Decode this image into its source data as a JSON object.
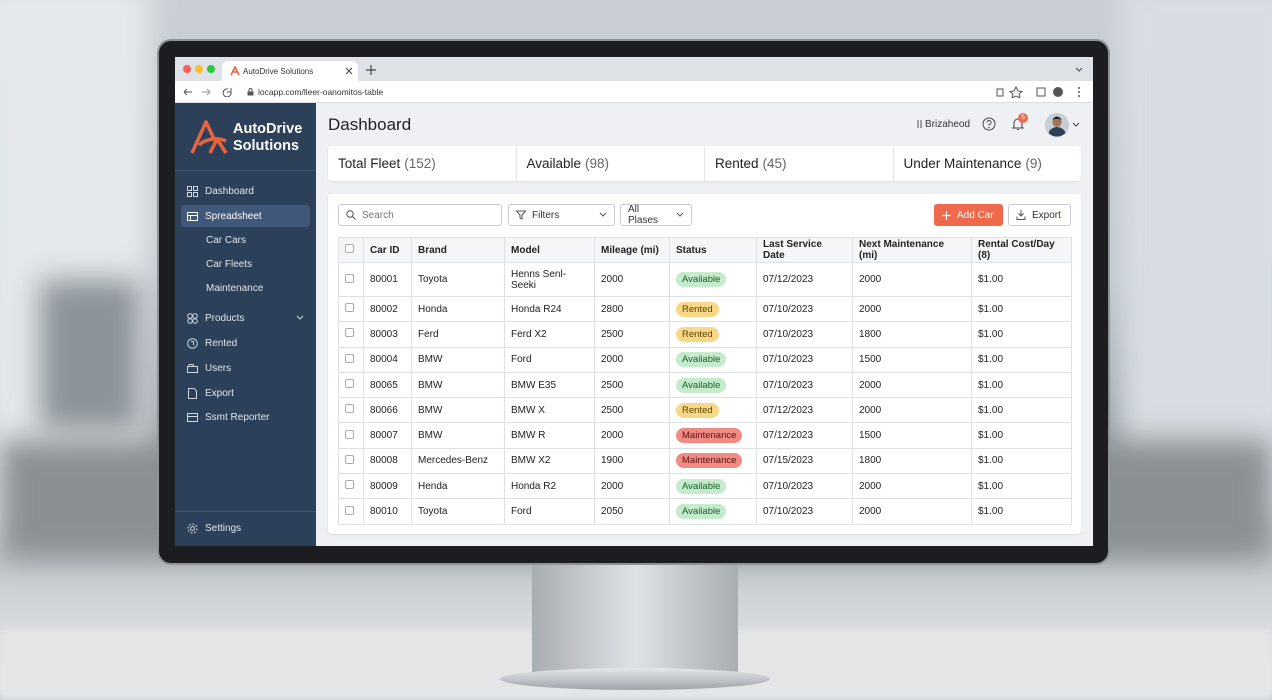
{
  "browser": {
    "tab_title": "AutoDrive Solutions",
    "url": "locapp.com/lleer-oanomitos-table"
  },
  "sidebar": {
    "brand": [
      "AutoDrive",
      "Solutions"
    ],
    "menu": [
      "Dashboard",
      "Spreadsheet",
      "Car Cars",
      "Car Fleets",
      "Maintenance",
      "Products",
      "Rented",
      "Users",
      "Export",
      "Ssmt Reporter"
    ],
    "settings": "Settings"
  },
  "header": {
    "title": "Dashboard",
    "user": "Brizaheod",
    "notifications": "5"
  },
  "stats": [
    {
      "label": "Total Fleet",
      "count": "(152)"
    },
    {
      "label": "Available",
      "count": "(98)"
    },
    {
      "label": "Rented",
      "count": "(45)"
    },
    {
      "label": "Under Maintenance",
      "count": "(9)"
    }
  ],
  "toolbar": {
    "search": "Search",
    "filter": "Filters",
    "place_filter": "All Plases",
    "add": "Add Car",
    "export": "Export"
  },
  "table": {
    "columns": [
      "Car ID",
      "Brand",
      "Model",
      "Mileage (mi)",
      "Status",
      "Last Service Date",
      "Next Maintenance (mi)",
      "Rental Cost/Day (8)"
    ],
    "rows": [
      [
        "80001",
        "Toyota",
        "Henns Senl-Seeki",
        "2000",
        {
          "label": "Available",
          "tone": "green"
        },
        "07/12/2023",
        "2000",
        "$1.00"
      ],
      [
        "80002",
        "Honda",
        "Honda R24",
        "2800",
        {
          "label": "Rented",
          "tone": "yellow"
        },
        "07/10/2023",
        "2000",
        "$1.00"
      ],
      [
        "80003",
        "Ferd",
        "Ferd X2",
        "2500",
        {
          "label": "Rented",
          "tone": "yellow"
        },
        "07/10/2023",
        "1800",
        "$1.00"
      ],
      [
        "80004",
        "BMW",
        "Ford",
        "2000",
        {
          "label": "Available",
          "tone": "green"
        },
        "07/10/2023",
        "1500",
        "$1.00"
      ],
      [
        "80065",
        "BMW",
        "BMW E35",
        "2500",
        {
          "label": "Available",
          "tone": "green"
        },
        "07/10/2023",
        "2000",
        "$1.00"
      ],
      [
        "80066",
        "BMW",
        "BMW X",
        "2500",
        {
          "label": "Rented",
          "tone": "yellow"
        },
        "07/12/2023",
        "2000",
        "$1.00"
      ],
      [
        "80007",
        "BMW",
        "BMW R",
        "2000",
        {
          "label": "Maintenance",
          "tone": "red"
        },
        "07/12/2023",
        "1500",
        "$1.00"
      ],
      [
        "80008",
        "Mercedes-Benz",
        "BMW X2",
        "1900",
        {
          "label": "Maintenance",
          "tone": "red"
        },
        "07/15/2023",
        "1800",
        "$1.00"
      ],
      [
        "80009",
        "Henda",
        "Honda R2",
        "2000",
        {
          "label": "Available",
          "tone": "green"
        },
        "07/10/2023",
        "2000",
        "$1.00"
      ],
      [
        "80010",
        "Toyota",
        "Ford",
        "2050",
        {
          "label": "Available",
          "tone": "green"
        },
        "07/10/2023",
        "2000",
        "$1.00"
      ]
    ]
  }
}
